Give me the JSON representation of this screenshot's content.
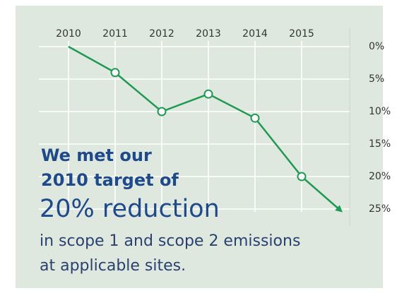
{
  "chart_data": {
    "type": "line",
    "x": [
      2010,
      2011,
      2012,
      2013,
      2014,
      2015
    ],
    "xlim": [
      2010,
      2015
    ],
    "xticks": [
      2010,
      2011,
      2012,
      2013,
      2014,
      2015
    ],
    "series": [
      {
        "color": "#1f9a52",
        "values": [
          0,
          4,
          10,
          7.3,
          11,
          20
        ]
      }
    ],
    "ylim": [
      25,
      0
    ],
    "yticks": [
      {
        "value": 0,
        "label": "0%"
      },
      {
        "value": 5,
        "label": "5%"
      },
      {
        "value": 10,
        "label": "10%"
      },
      {
        "value": 15,
        "label": "15%"
      },
      {
        "value": 20,
        "label": "20%"
      },
      {
        "value": 25,
        "label": "25%"
      }
    ],
    "grid": true,
    "annotations": [
      "We met our",
      "2010 target of",
      "20% reduction",
      "in scope 1 and scope 2 emissions",
      "at applicable sites."
    ]
  }
}
